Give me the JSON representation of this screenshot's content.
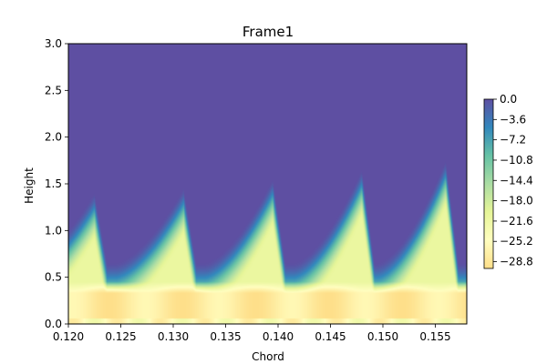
{
  "chart_data": {
    "type": "heatmap",
    "title": "Frame1",
    "xlabel": "Chord",
    "ylabel": "Height",
    "xlim": [
      0.12,
      0.158
    ],
    "ylim": [
      0.0,
      3.0
    ],
    "x_ticks": [
      "0.120",
      "0.125",
      "0.130",
      "0.135",
      "0.140",
      "0.145",
      "0.150",
      "0.155"
    ],
    "x_tick_values": [
      0.12,
      0.125,
      0.13,
      0.135,
      0.14,
      0.145,
      0.15,
      0.155
    ],
    "y_ticks": [
      "0.0",
      "0.5",
      "1.0",
      "1.5",
      "2.0",
      "2.5",
      "3.0"
    ],
    "y_tick_values": [
      0.0,
      0.5,
      1.0,
      1.5,
      2.0,
      2.5,
      3.0
    ],
    "colorbar": {
      "range": [
        -30.0,
        0.0
      ],
      "ticks": [
        "0.0",
        "−3.6",
        "−7.2",
        "−10.8",
        "−14.4",
        "−18.0",
        "−21.6",
        "−25.2",
        "−28.8"
      ],
      "tick_values": [
        0.0,
        -3.6,
        -7.2,
        -10.8,
        -14.4,
        -18.0,
        -21.6,
        -25.2,
        -28.8
      ],
      "colormap": "Spectral_r",
      "colors": [
        "#fedf8a",
        "#fffebf",
        "#e6f598",
        "#abdda4",
        "#66c2a5",
        "#3288bd",
        "#5e4fa2"
      ]
    },
    "field": {
      "background_value": 0.0,
      "crest_chord": [
        0.1225,
        0.131,
        0.1395,
        0.148,
        0.156
      ],
      "crest_height": [
        1.3,
        1.35,
        1.45,
        1.55,
        1.65
      ],
      "near_wall_value": -28.0
    }
  }
}
